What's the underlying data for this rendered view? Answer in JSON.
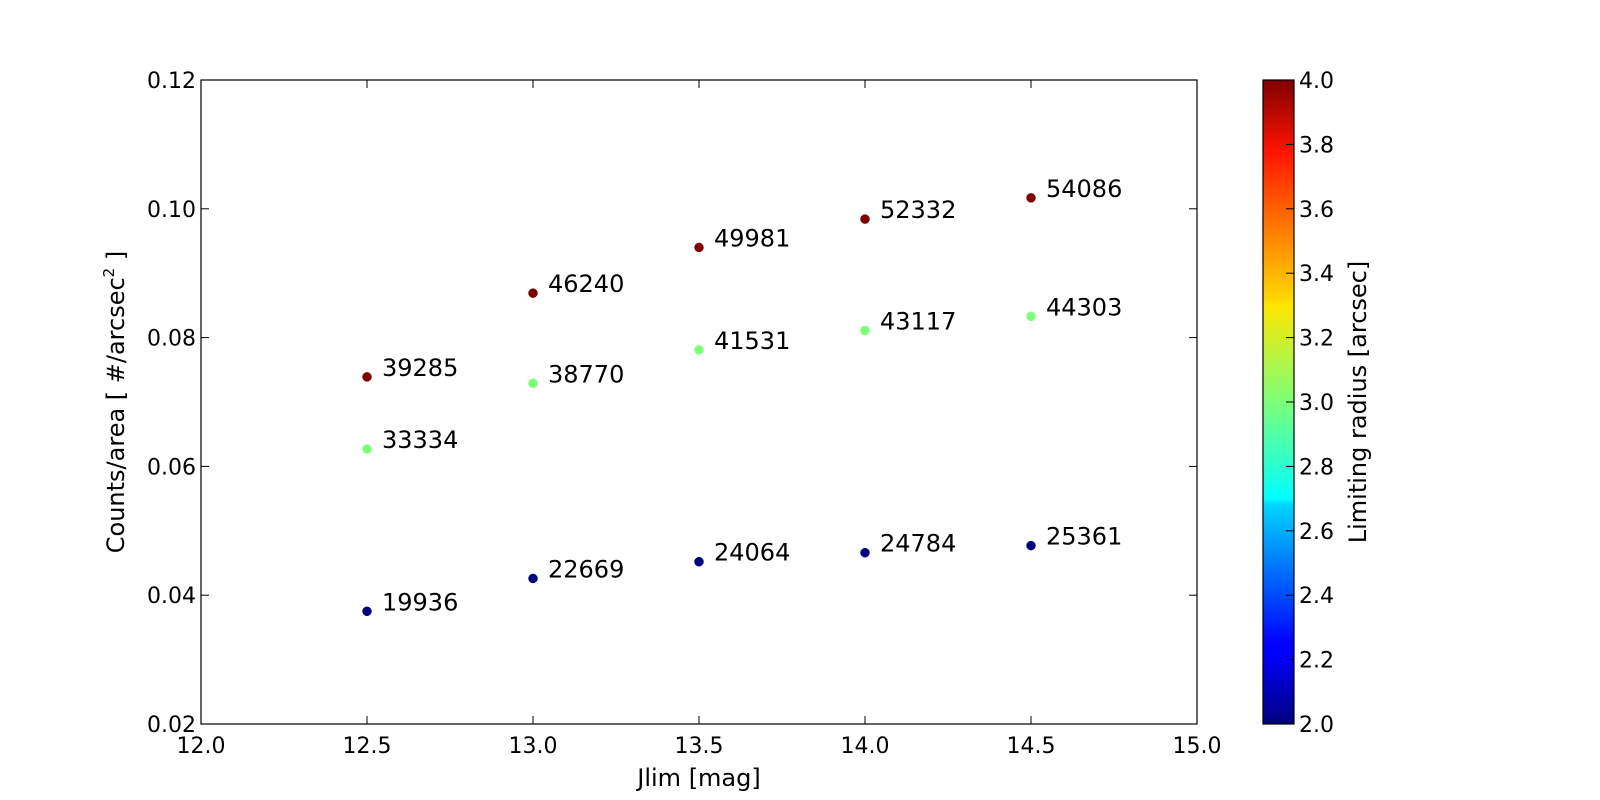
{
  "chart_data": {
    "type": "scatter",
    "title": "",
    "xlabel": "Jlim [mag]",
    "ylabel_main": "Counts/area [ #/arcsec",
    "ylabel_sup": "2",
    "ylabel_end": " ]",
    "xlim": [
      12.0,
      15.0
    ],
    "ylim": [
      0.02,
      0.12
    ],
    "xticks": [
      "12.0",
      "12.5",
      "13.0",
      "13.5",
      "14.0",
      "14.5",
      "15.0"
    ],
    "yticks": [
      "0.02",
      "0.04",
      "0.06",
      "0.08",
      "0.10",
      "0.12"
    ],
    "grid": false,
    "colorbar": {
      "label": "Limiting radius [arcsec]",
      "range": [
        2.0,
        4.0
      ],
      "colormap": "jet",
      "ticks": [
        "2.0",
        "2.2",
        "2.4",
        "2.6",
        "2.8",
        "3.0",
        "3.2",
        "3.4",
        "3.6",
        "3.8",
        "4.0"
      ]
    },
    "series": [
      {
        "radius": 2.0,
        "color": "#00007f",
        "points": [
          {
            "x": 12.5,
            "y": 0.0375,
            "label": "19936"
          },
          {
            "x": 13.0,
            "y": 0.0426,
            "label": "22669"
          },
          {
            "x": 13.5,
            "y": 0.0452,
            "label": "24064"
          },
          {
            "x": 14.0,
            "y": 0.0466,
            "label": "24784"
          },
          {
            "x": 14.5,
            "y": 0.0477,
            "label": "25361"
          }
        ]
      },
      {
        "radius": 3.0,
        "color": "#7cff79",
        "points": [
          {
            "x": 12.5,
            "y": 0.0627,
            "label": "33334"
          },
          {
            "x": 13.0,
            "y": 0.0729,
            "label": "38770"
          },
          {
            "x": 13.5,
            "y": 0.0781,
            "label": "41531"
          },
          {
            "x": 14.0,
            "y": 0.0811,
            "label": "43117"
          },
          {
            "x": 14.5,
            "y": 0.0833,
            "label": "44303"
          }
        ]
      },
      {
        "radius": 4.0,
        "color": "#7f0000",
        "points": [
          {
            "x": 12.5,
            "y": 0.0739,
            "label": "39285"
          },
          {
            "x": 13.0,
            "y": 0.0869,
            "label": "46240"
          },
          {
            "x": 13.5,
            "y": 0.094,
            "label": "49981"
          },
          {
            "x": 14.0,
            "y": 0.0984,
            "label": "52332"
          },
          {
            "x": 14.5,
            "y": 0.1017,
            "label": "54086"
          }
        ]
      }
    ]
  }
}
